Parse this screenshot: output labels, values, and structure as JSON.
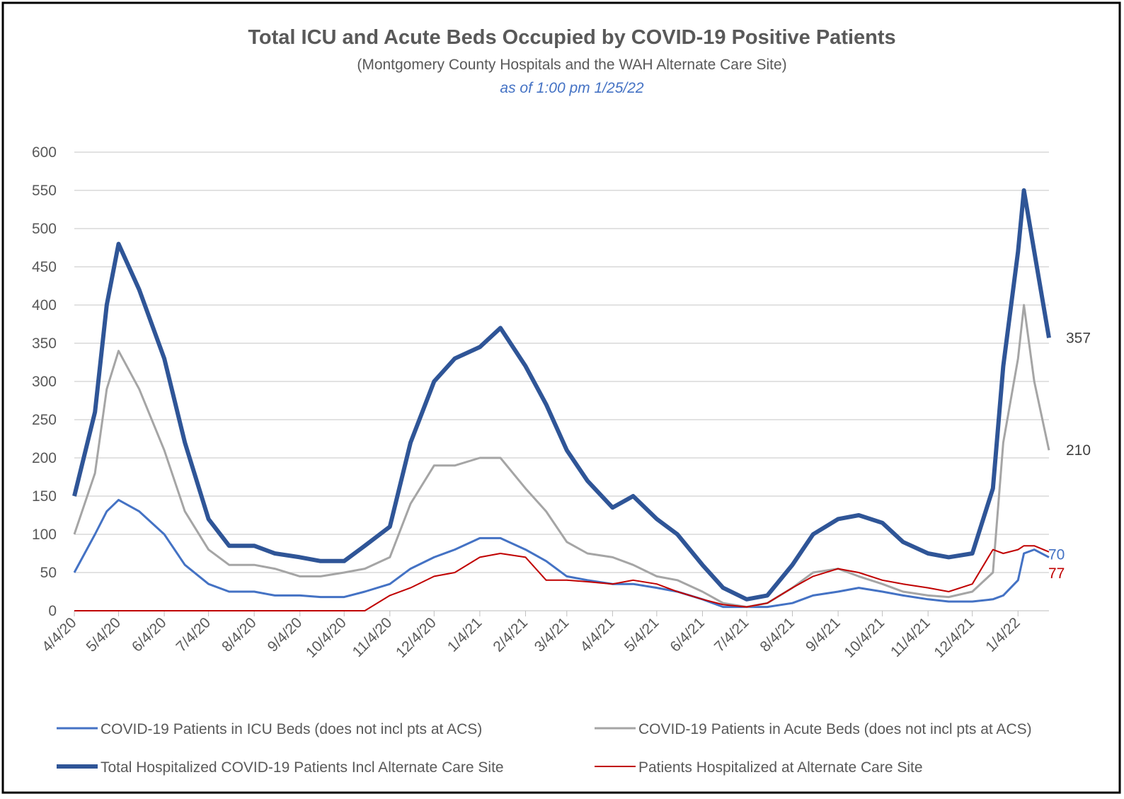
{
  "chart_data": {
    "type": "line",
    "title": "Total ICU and Acute Beds Occupied by COVID-19 Positive Patients",
    "subtitle": "(Montgomery County Hospitals and the WAH Alternate Care Site)",
    "note": "as of 1:00 pm 1/25/22",
    "x": [
      "4/4/20",
      "4/18/20",
      "4/26/20",
      "5/4/20",
      "5/18/20",
      "6/4/20",
      "6/18/20",
      "7/4/20",
      "7/18/20",
      "8/4/20",
      "8/18/20",
      "9/4/20",
      "9/18/20",
      "10/4/20",
      "10/18/20",
      "11/4/20",
      "11/18/20",
      "12/4/20",
      "12/18/20",
      "1/4/21",
      "1/18/21",
      "2/4/21",
      "2/18/21",
      "3/4/21",
      "3/18/21",
      "4/4/21",
      "4/18/21",
      "5/4/21",
      "5/18/21",
      "6/4/21",
      "6/18/21",
      "7/4/21",
      "7/18/21",
      "8/4/21",
      "8/18/21",
      "9/4/21",
      "9/18/21",
      "10/4/21",
      "10/18/21",
      "11/4/21",
      "11/18/21",
      "12/4/21",
      "12/18/21",
      "12/25/21",
      "1/4/22",
      "1/8/22",
      "1/15/22",
      "1/25/22"
    ],
    "series": [
      {
        "name": "COVID-19 Patients in  ICU Beds (does not incl pts at ACS)",
        "color": "#4472c4",
        "width": 3,
        "values": [
          50,
          100,
          130,
          145,
          130,
          100,
          60,
          35,
          25,
          25,
          20,
          20,
          18,
          18,
          25,
          35,
          55,
          70,
          80,
          95,
          95,
          80,
          65,
          45,
          40,
          35,
          35,
          30,
          25,
          15,
          5,
          5,
          5,
          10,
          20,
          25,
          30,
          25,
          20,
          15,
          12,
          12,
          15,
          20,
          40,
          75,
          80,
          70
        ]
      },
      {
        "name": "COVID-19 Patients in Acute Beds (does not incl pts at ACS)",
        "color": "#a5a5a5",
        "width": 3,
        "values": [
          100,
          180,
          290,
          340,
          290,
          210,
          130,
          80,
          60,
          60,
          55,
          45,
          45,
          50,
          55,
          70,
          140,
          190,
          190,
          200,
          200,
          160,
          130,
          90,
          75,
          70,
          60,
          45,
          40,
          25,
          10,
          5,
          10,
          30,
          50,
          55,
          45,
          35,
          25,
          20,
          18,
          25,
          50,
          220,
          330,
          400,
          300,
          210
        ]
      },
      {
        "name": "Total Hospitalized COVID-19 Patients Incl Alternate Care Site",
        "color": "#2f5597",
        "width": 6,
        "values": [
          150,
          260,
          400,
          480,
          420,
          330,
          220,
          120,
          85,
          85,
          75,
          70,
          65,
          65,
          85,
          110,
          220,
          300,
          330,
          345,
          370,
          320,
          270,
          210,
          170,
          135,
          150,
          120,
          100,
          60,
          30,
          15,
          20,
          60,
          100,
          120,
          125,
          115,
          90,
          75,
          70,
          75,
          160,
          320,
          470,
          550,
          470,
          357
        ]
      },
      {
        "name": "Patients Hospitalized at Alternate Care Site",
        "color": "#c00000",
        "width": 2,
        "values": [
          0,
          0,
          0,
          0,
          0,
          0,
          0,
          0,
          0,
          0,
          0,
          0,
          0,
          0,
          0,
          20,
          30,
          45,
          50,
          70,
          75,
          70,
          40,
          40,
          38,
          35,
          40,
          35,
          25,
          15,
          8,
          5,
          10,
          30,
          45,
          55,
          50,
          40,
          35,
          30,
          25,
          35,
          80,
          75,
          80,
          85,
          85,
          77
        ]
      }
    ],
    "xlim": [
      "4/4/20",
      "1/25/22"
    ],
    "xticks": [
      "4/4/20",
      "5/4/20",
      "6/4/20",
      "7/4/20",
      "8/4/20",
      "9/4/20",
      "10/4/20",
      "11/4/20",
      "12/4/20",
      "1/4/21",
      "2/4/21",
      "3/4/21",
      "4/4/21",
      "5/4/21",
      "6/4/21",
      "7/4/21",
      "8/4/21",
      "9/4/21",
      "10/4/21",
      "11/4/21",
      "12/4/21",
      "1/4/22"
    ],
    "ylim": [
      0,
      600
    ],
    "yticks": [
      0,
      50,
      100,
      150,
      200,
      250,
      300,
      350,
      400,
      450,
      500,
      550,
      600
    ],
    "grid": true
  }
}
